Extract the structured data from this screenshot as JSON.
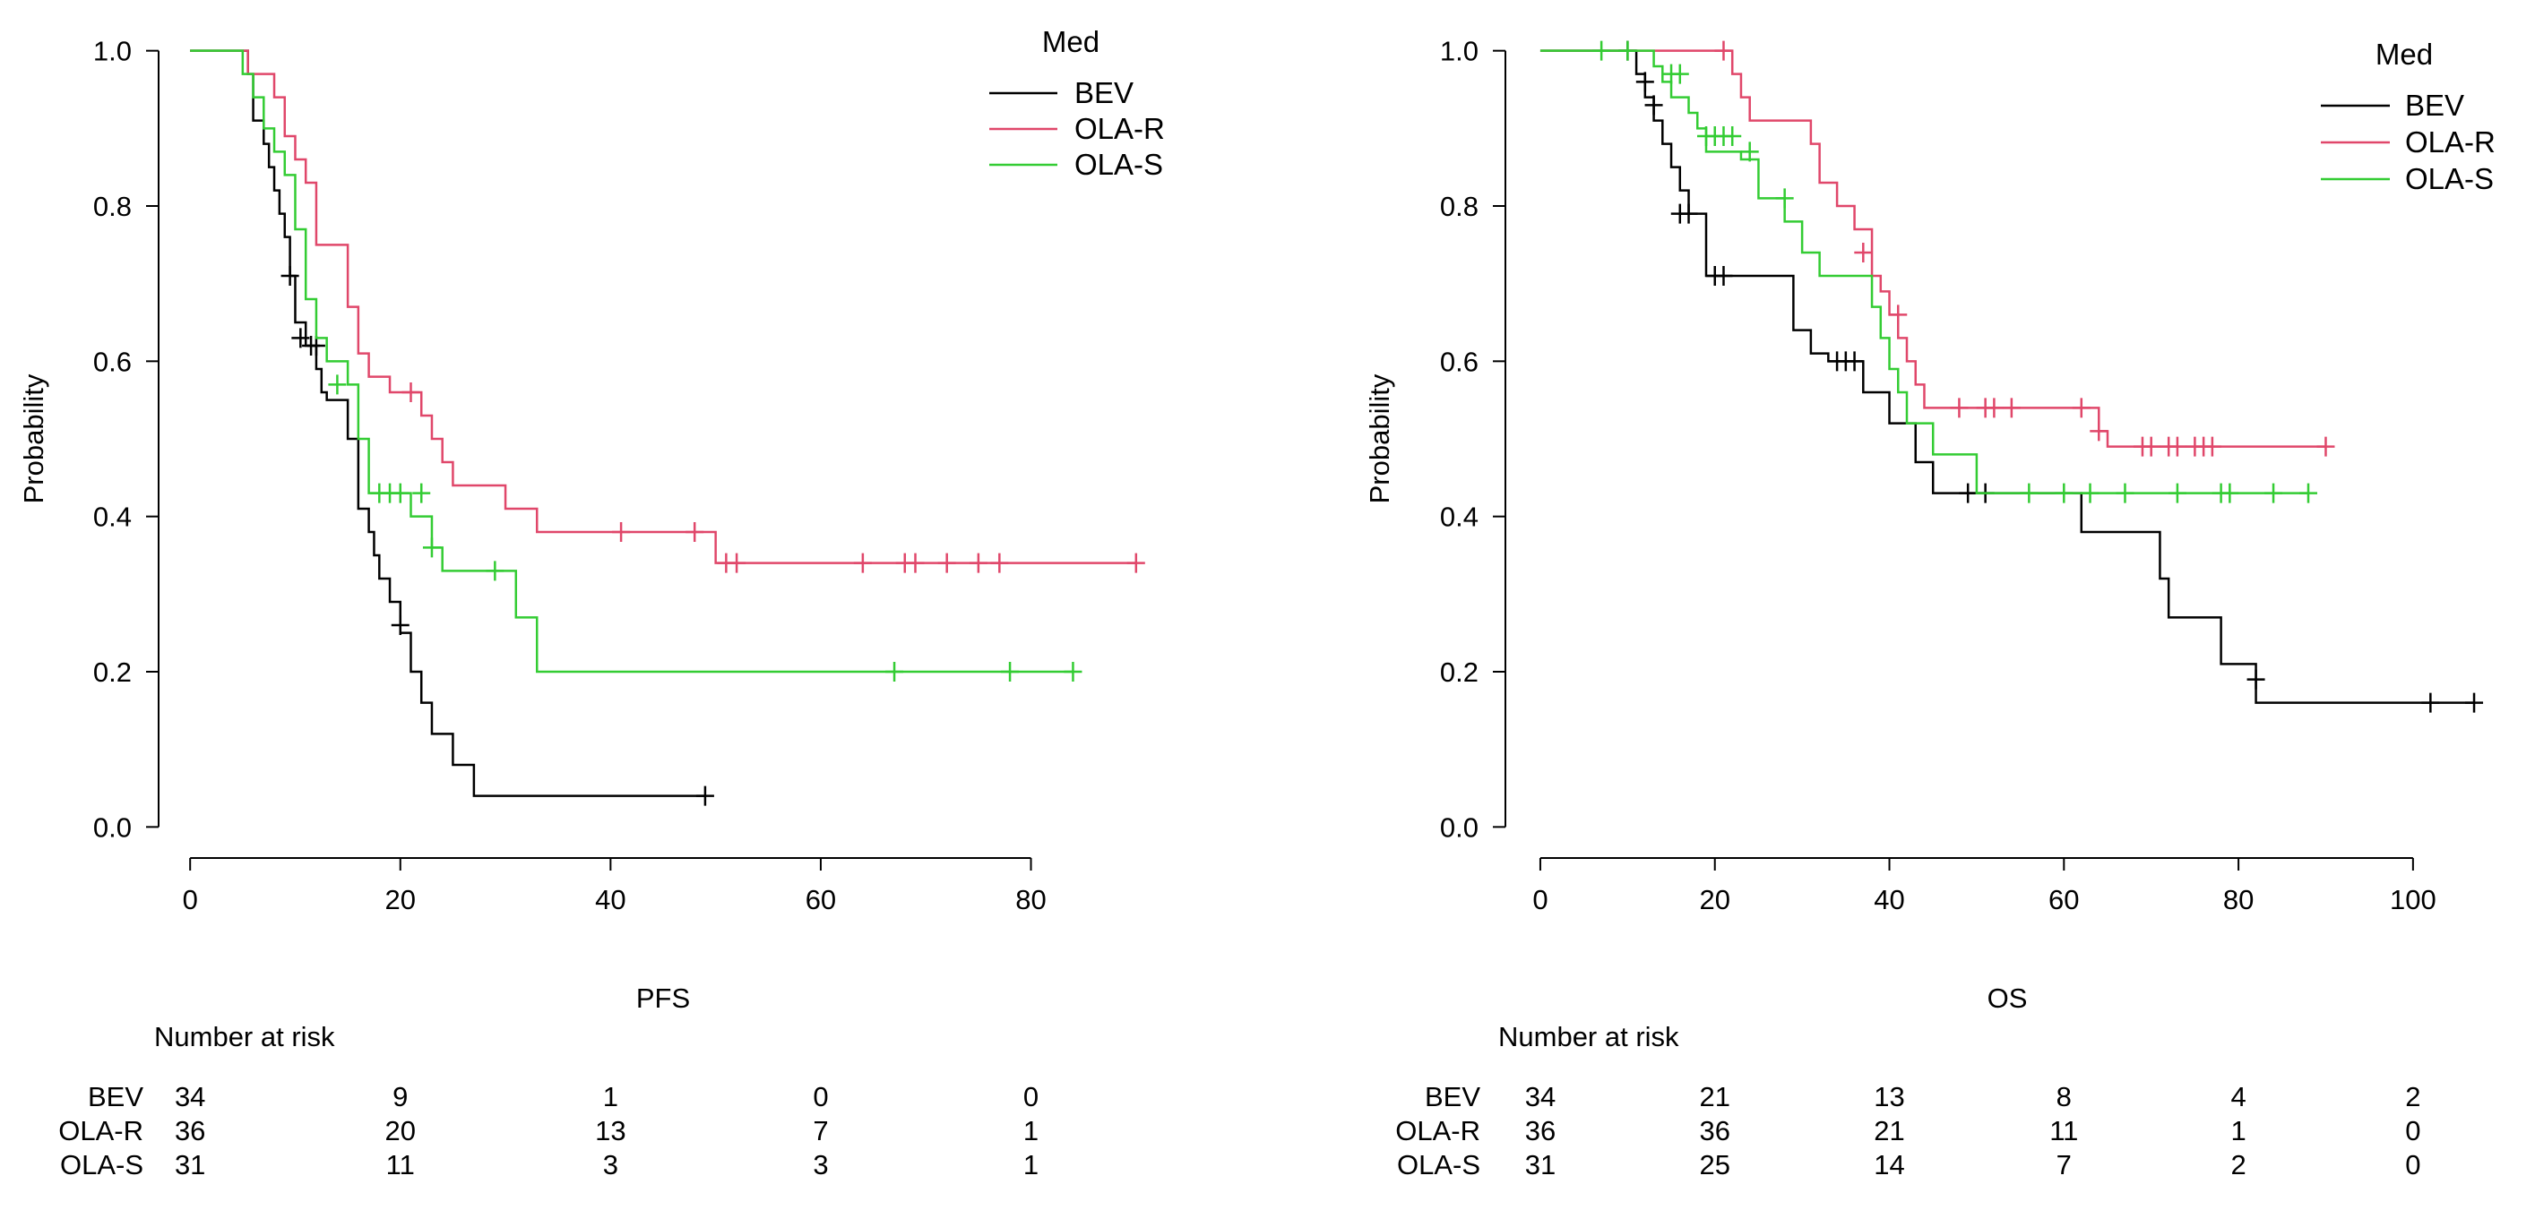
{
  "colors": {
    "BEV": "#000000",
    "OLA-R": "#e0476a",
    "OLA-S": "#33cc33"
  },
  "chart_data": [
    {
      "type": "line",
      "step": true,
      "xlabel": "PFS",
      "ylabel": "Probability",
      "xlim": [
        -3,
        93
      ],
      "ylim": [
        -0.04,
        1.04
      ],
      "xticks": [
        0,
        20,
        40,
        60,
        80
      ],
      "xtick_labels": [
        "0",
        "20",
        "40",
        "60",
        "80"
      ],
      "yticks": [
        0.0,
        0.2,
        0.4,
        0.6,
        0.8,
        1.0
      ],
      "ytick_labels": [
        "0.0",
        "0.2",
        "0.4",
        "0.6",
        "0.8",
        "1.0"
      ],
      "legend": {
        "title": "Med",
        "placement": "top-right"
      },
      "series": [
        {
          "name": "BEV",
          "x": [
            0,
            5.5,
            6,
            7,
            7.5,
            8,
            8.5,
            9,
            9.5,
            10,
            11,
            12,
            12.5,
            13,
            14,
            15,
            16,
            17,
            17.5,
            18,
            19,
            20,
            21,
            22,
            23,
            25,
            27,
            49
          ],
          "y": [
            1.0,
            0.97,
            0.91,
            0.88,
            0.85,
            0.82,
            0.79,
            0.76,
            0.71,
            0.65,
            0.62,
            0.59,
            0.56,
            0.55,
            0.55,
            0.5,
            0.41,
            0.38,
            0.35,
            0.32,
            0.29,
            0.25,
            0.2,
            0.16,
            0.12,
            0.08,
            0.04,
            0.04
          ],
          "censored": [
            [
              9.5,
              0.71
            ],
            [
              10.5,
              0.63
            ],
            [
              11.5,
              0.62
            ],
            [
              12,
              0.62
            ],
            [
              20,
              0.26
            ],
            [
              49,
              0.04
            ]
          ]
        },
        {
          "name": "OLA-R",
          "x": [
            0,
            5.5,
            8,
            9,
            10,
            11,
            12,
            15,
            16,
            17,
            19,
            22,
            23,
            24,
            25,
            30,
            33,
            34,
            41,
            49,
            50,
            90
          ],
          "y": [
            1.0,
            0.97,
            0.94,
            0.89,
            0.86,
            0.83,
            0.75,
            0.67,
            0.61,
            0.58,
            0.56,
            0.53,
            0.5,
            0.47,
            0.44,
            0.41,
            0.38,
            0.38,
            0.38,
            0.38,
            0.34,
            0.34
          ],
          "censored": [
            [
              21,
              0.56
            ],
            [
              41,
              0.38
            ],
            [
              48,
              0.38
            ],
            [
              51,
              0.34
            ],
            [
              52,
              0.34
            ],
            [
              64,
              0.34
            ],
            [
              68,
              0.34
            ],
            [
              69,
              0.34
            ],
            [
              72,
              0.34
            ],
            [
              75,
              0.34
            ],
            [
              77,
              0.34
            ],
            [
              90,
              0.34
            ]
          ]
        },
        {
          "name": "OLA-S",
          "x": [
            0,
            5,
            6,
            7,
            8,
            9,
            10,
            11,
            12,
            13,
            15,
            16,
            17,
            21,
            23,
            24,
            29,
            31,
            33,
            84
          ],
          "y": [
            1.0,
            0.97,
            0.94,
            0.9,
            0.87,
            0.84,
            0.77,
            0.68,
            0.63,
            0.6,
            0.57,
            0.5,
            0.43,
            0.4,
            0.36,
            0.33,
            0.33,
            0.27,
            0.2,
            0.2
          ],
          "censored": [
            [
              14,
              0.57
            ],
            [
              18,
              0.43
            ],
            [
              19,
              0.43
            ],
            [
              20,
              0.43
            ],
            [
              22,
              0.43
            ],
            [
              23,
              0.36
            ],
            [
              29,
              0.33
            ],
            [
              67,
              0.2
            ],
            [
              78,
              0.2
            ],
            [
              84,
              0.2
            ]
          ]
        }
      ],
      "risk_table": {
        "title": "Number at risk",
        "times": [
          0,
          20,
          40,
          60,
          80
        ],
        "rows": [
          {
            "name": "BEV",
            "values": [
              "34",
              "9",
              "1",
              "0",
              "0"
            ]
          },
          {
            "name": "OLA-R",
            "values": [
              "36",
              "20",
              "13",
              "7",
              "1"
            ]
          },
          {
            "name": "OLA-S",
            "values": [
              "31",
              "11",
              "3",
              "3",
              "1"
            ]
          }
        ]
      }
    },
    {
      "type": "line",
      "step": true,
      "xlabel": "OS",
      "ylabel": "Probability",
      "xlim": [
        -4,
        111
      ],
      "ylim": [
        -0.04,
        1.04
      ],
      "xticks": [
        0,
        20,
        40,
        60,
        80,
        100
      ],
      "xtick_labels": [
        "0",
        "20",
        "40",
        "60",
        "80",
        "100"
      ],
      "yticks": [
        0.0,
        0.2,
        0.4,
        0.6,
        0.8,
        1.0
      ],
      "ytick_labels": [
        "0.0",
        "0.2",
        "0.4",
        "0.6",
        "0.8",
        "1.0"
      ],
      "legend": {
        "title": "Med",
        "placement": "top-right"
      },
      "series": [
        {
          "name": "BEV",
          "x": [
            0,
            11,
            12,
            13,
            14,
            15,
            16,
            17,
            19,
            29,
            31,
            33,
            37,
            40,
            43,
            45,
            62,
            71,
            72,
            78,
            82,
            107
          ],
          "y": [
            1.0,
            0.97,
            0.94,
            0.91,
            0.88,
            0.85,
            0.82,
            0.79,
            0.71,
            0.64,
            0.61,
            0.6,
            0.56,
            0.52,
            0.47,
            0.43,
            0.38,
            0.32,
            0.27,
            0.21,
            0.16,
            0.16
          ],
          "censored": [
            [
              10,
              1.0
            ],
            [
              12,
              0.96
            ],
            [
              13,
              0.93
            ],
            [
              16,
              0.79
            ],
            [
              17,
              0.79
            ],
            [
              20,
              0.71
            ],
            [
              21,
              0.71
            ],
            [
              34,
              0.6
            ],
            [
              35,
              0.6
            ],
            [
              36,
              0.6
            ],
            [
              49,
              0.43
            ],
            [
              51,
              0.43
            ],
            [
              82,
              0.19
            ],
            [
              102,
              0.16
            ],
            [
              107,
              0.16
            ]
          ]
        },
        {
          "name": "OLA-R",
          "x": [
            0,
            22,
            23,
            24,
            31,
            32,
            34,
            36,
            38,
            39,
            40,
            41,
            42,
            43,
            44,
            45,
            64,
            65,
            90
          ],
          "y": [
            1.0,
            0.97,
            0.94,
            0.91,
            0.88,
            0.83,
            0.8,
            0.77,
            0.71,
            0.69,
            0.66,
            0.63,
            0.6,
            0.57,
            0.54,
            0.54,
            0.51,
            0.49,
            0.49
          ],
          "censored": [
            [
              21,
              1.0
            ],
            [
              37,
              0.74
            ],
            [
              41,
              0.66
            ],
            [
              48,
              0.54
            ],
            [
              51,
              0.54
            ],
            [
              52,
              0.54
            ],
            [
              54,
              0.54
            ],
            [
              62,
              0.54
            ],
            [
              64,
              0.51
            ],
            [
              69,
              0.49
            ],
            [
              70,
              0.49
            ],
            [
              72,
              0.49
            ],
            [
              73,
              0.49
            ],
            [
              75,
              0.49
            ],
            [
              76,
              0.49
            ],
            [
              77,
              0.49
            ],
            [
              90,
              0.49
            ]
          ]
        },
        {
          "name": "OLA-S",
          "x": [
            0,
            13,
            14,
            15,
            17,
            18,
            19,
            23,
            25,
            28,
            30,
            32,
            38,
            39,
            40,
            41,
            42,
            45,
            50,
            88
          ],
          "y": [
            1.0,
            0.98,
            0.96,
            0.94,
            0.92,
            0.9,
            0.87,
            0.86,
            0.81,
            0.78,
            0.74,
            0.71,
            0.67,
            0.63,
            0.59,
            0.56,
            0.52,
            0.48,
            0.43,
            0.43
          ],
          "censored": [
            [
              7,
              1.0
            ],
            [
              10,
              1.0
            ],
            [
              15,
              0.97
            ],
            [
              16,
              0.97
            ],
            [
              19,
              0.89
            ],
            [
              20,
              0.89
            ],
            [
              21,
              0.89
            ],
            [
              22,
              0.89
            ],
            [
              24,
              0.87
            ],
            [
              28,
              0.81
            ],
            [
              56,
              0.43
            ],
            [
              60,
              0.43
            ],
            [
              63,
              0.43
            ],
            [
              67,
              0.43
            ],
            [
              73,
              0.43
            ],
            [
              78,
              0.43
            ],
            [
              79,
              0.43
            ],
            [
              84,
              0.43
            ],
            [
              88,
              0.43
            ]
          ]
        }
      ],
      "risk_table": {
        "title": "Number at risk",
        "times": [
          0,
          20,
          40,
          60,
          80,
          100
        ],
        "rows": [
          {
            "name": "BEV",
            "values": [
              "34",
              "21",
              "13",
              "8",
              "4",
              "2"
            ]
          },
          {
            "name": "OLA-R",
            "values": [
              "36",
              "36",
              "21",
              "11",
              "1",
              "0"
            ]
          },
          {
            "name": "OLA-S",
            "values": [
              "31",
              "25",
              "14",
              "7",
              "2",
              "0"
            ]
          }
        ]
      }
    }
  ]
}
